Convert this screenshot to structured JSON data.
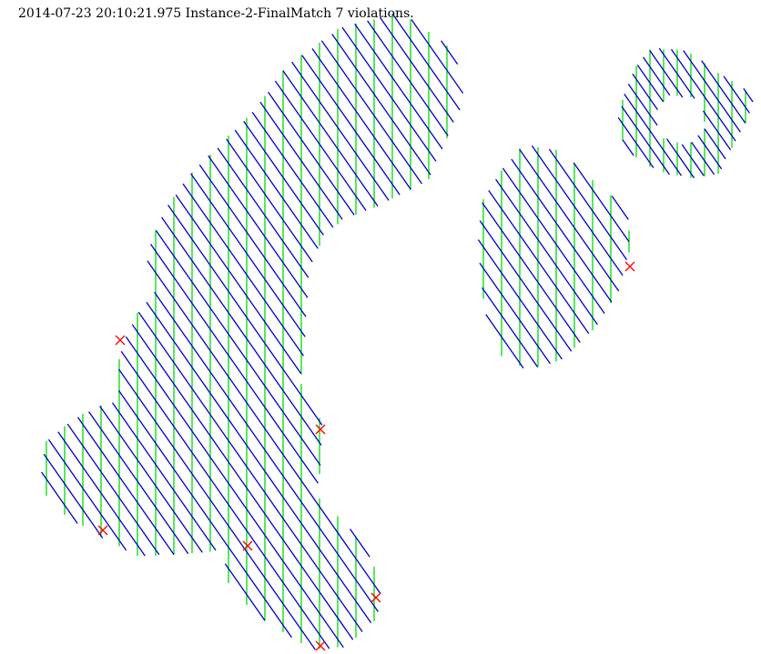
{
  "caption": "2014-07-23 20:10:21.975 Instance-2-FinalMatch 7 violations.",
  "colors": {
    "background": "#ffffff",
    "hatch_diagonal": "#0000cc",
    "hatch_vertical": "#00dd00",
    "violation_marker": "#ff0000",
    "text": "#000000"
  },
  "legend": null
}
